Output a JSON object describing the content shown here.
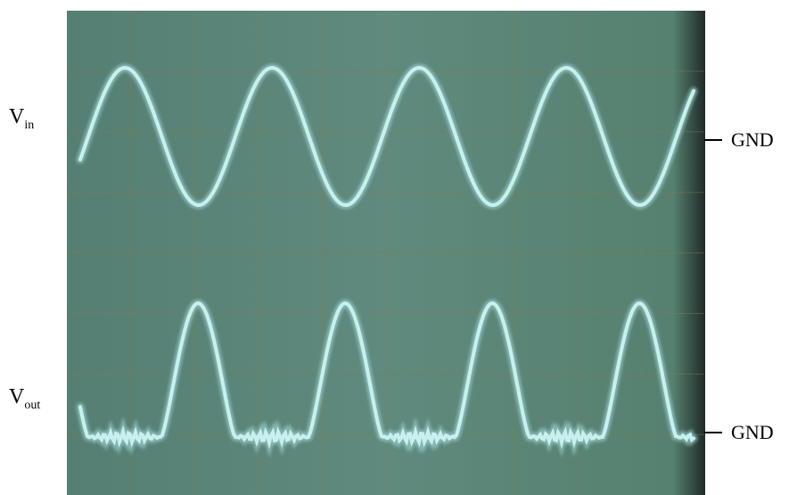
{
  "traces": [
    {
      "symbol": "V",
      "subscript": "in",
      "reference": "GND"
    },
    {
      "symbol": "V",
      "subscript": "out",
      "reference": "GND"
    }
  ]
}
